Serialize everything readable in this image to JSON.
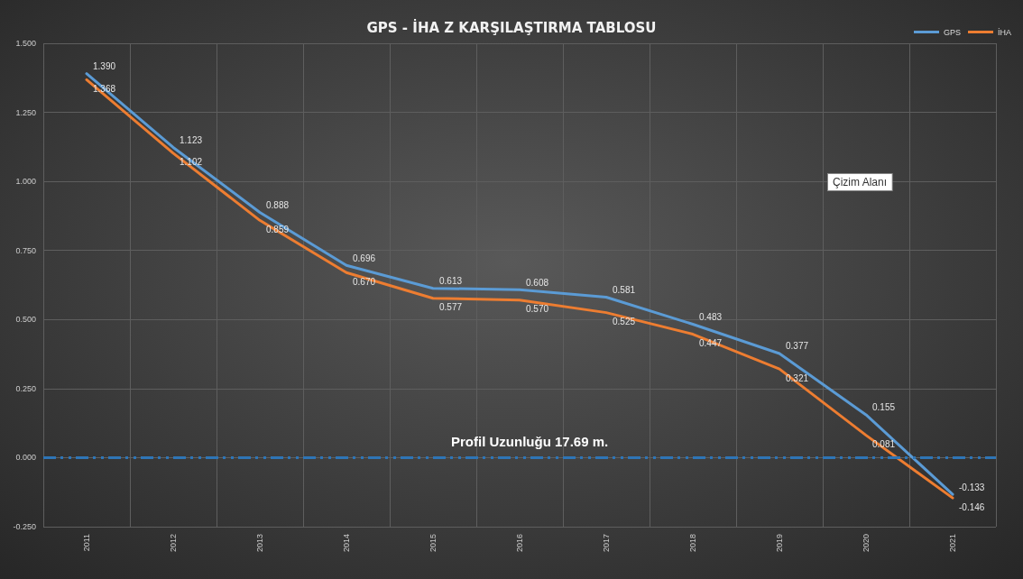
{
  "chart_data": {
    "type": "line",
    "title": "GPS - İHA Z KARŞILAŞTIRMA TABLOSU",
    "categories": [
      "2011",
      "2012",
      "2013",
      "2014",
      "2015",
      "2016",
      "2017",
      "2018",
      "2019",
      "2020",
      "2021"
    ],
    "series": [
      {
        "name": "GPS",
        "color": "#5b9bd5",
        "values": [
          1.39,
          1.123,
          0.888,
          0.696,
          0.613,
          0.608,
          0.581,
          0.483,
          0.377,
          0.155,
          -0.133
        ],
        "value_labels": [
          "1.390",
          "1.123",
          "0.888",
          "0.696",
          "0.613",
          "0.608",
          "0.581",
          "0.483",
          "0.377",
          "0.155",
          "-0.133"
        ]
      },
      {
        "name": "İHA",
        "color": "#ed7d31",
        "values": [
          1.368,
          1.102,
          0.859,
          0.67,
          0.577,
          0.57,
          0.525,
          0.447,
          0.321,
          0.081,
          -0.146
        ],
        "value_labels": [
          "1.368",
          "1.102",
          "0.859",
          "0.670",
          "0.577",
          "0.570",
          "0.525",
          "0.447",
          "0.321",
          "0.081",
          "-0.146"
        ]
      }
    ],
    "ylim": [
      -0.25,
      1.5
    ],
    "yticks": [
      {
        "value": -0.25,
        "label": "-0.250"
      },
      {
        "value": 0,
        "label": "0.000"
      },
      {
        "value": 0.25,
        "label": "0.250"
      },
      {
        "value": 0.5,
        "label": "0.500"
      },
      {
        "value": 0.75,
        "label": "0.750"
      },
      {
        "value": 1,
        "label": "1.000"
      },
      {
        "value": 1.25,
        "label": "1.250"
      },
      {
        "value": 1.5,
        "label": "1.500"
      }
    ],
    "ref_lines": [
      {
        "axis": "y",
        "value": 0,
        "color": "#2e75b6",
        "line_style": "dashed"
      }
    ],
    "annotations": [
      "Profil Uzunluğu 17.69 m.",
      "Çizim Alanı"
    ],
    "grid": true,
    "legend": "top right",
    "marker": "none",
    "line_style": "solid"
  }
}
